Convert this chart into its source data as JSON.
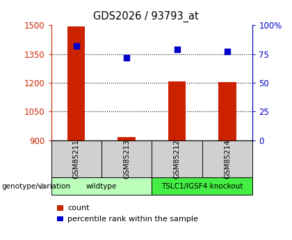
{
  "title": "GDS2026 / 93793_at",
  "samples": [
    "GSM85211",
    "GSM85213",
    "GSM85212",
    "GSM85214"
  ],
  "counts": [
    1492,
    916,
    1207,
    1202
  ],
  "percentiles": [
    82,
    72,
    79,
    77
  ],
  "ylim_left": [
    900,
    1500
  ],
  "ylim_right": [
    0,
    100
  ],
  "yticks_left": [
    900,
    1050,
    1200,
    1350,
    1500
  ],
  "yticks_right": [
    0,
    25,
    50,
    75,
    100
  ],
  "ytick_labels_right": [
    "0",
    "25",
    "50",
    "75",
    "100%"
  ],
  "bar_color": "#cc2200",
  "dot_color": "#0000cc",
  "plot_bg": "#ffffff",
  "groups": [
    {
      "label": "wildtype",
      "samples": [
        0,
        1
      ],
      "color": "#bbffbb"
    },
    {
      "label": "TSLC1/IGSF4 knockout",
      "samples": [
        2,
        3
      ],
      "color": "#44ee44"
    }
  ],
  "left_color": "#cc2200",
  "right_color": "#0000cc",
  "legend_count_label": "count",
  "legend_percentile_label": "percentile rank within the sample",
  "genotype_label": "genotype/variation"
}
